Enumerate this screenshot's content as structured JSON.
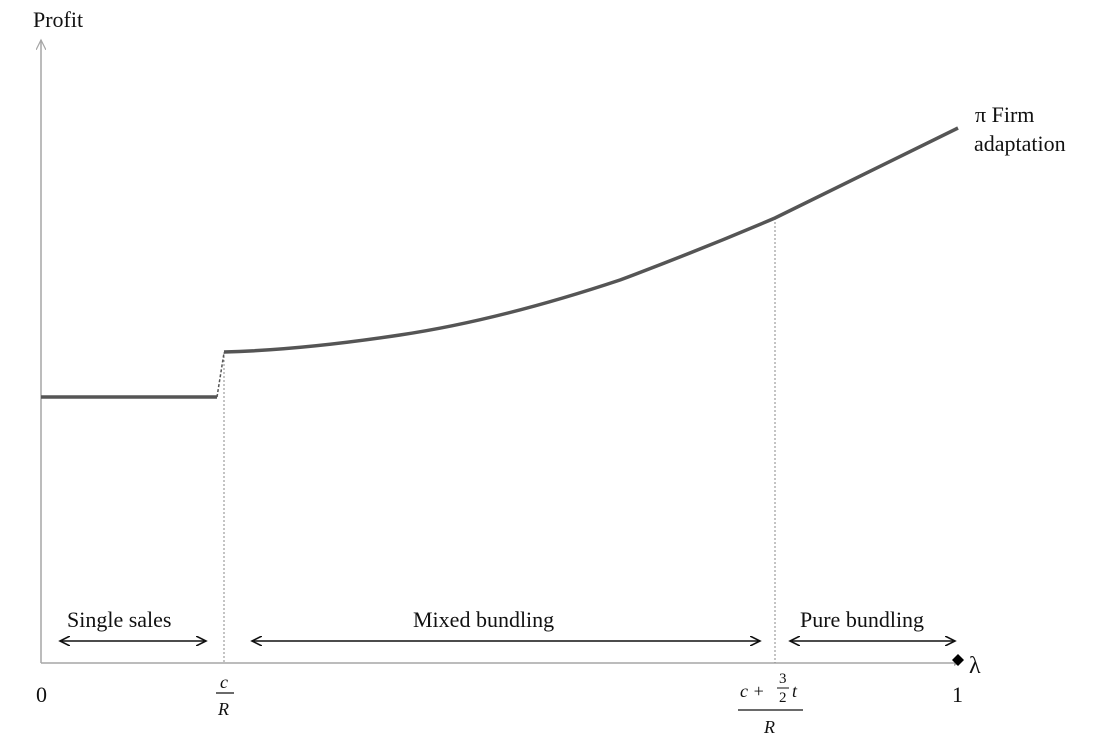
{
  "axes": {
    "y_label": "Profit",
    "x_label": "λ",
    "origin_label": "0",
    "end_label": "1"
  },
  "curve": {
    "label_line1": "π Firm",
    "label_line2": "adaptation"
  },
  "thresholds": {
    "t1": {
      "numerator": "c",
      "denominator": "R"
    },
    "t2": {
      "numerator_prefix": "c +",
      "frac_num": "3",
      "frac_den": "2",
      "numerator_suffix": "t",
      "denominator": "R"
    }
  },
  "regions": {
    "single": "Single sales",
    "mixed": "Mixed bundling",
    "pure": "Pure bundling"
  },
  "colors": {
    "axis": "#a6a6a6",
    "curve": "#555555",
    "guide": "#888888",
    "text": "#111111"
  }
}
